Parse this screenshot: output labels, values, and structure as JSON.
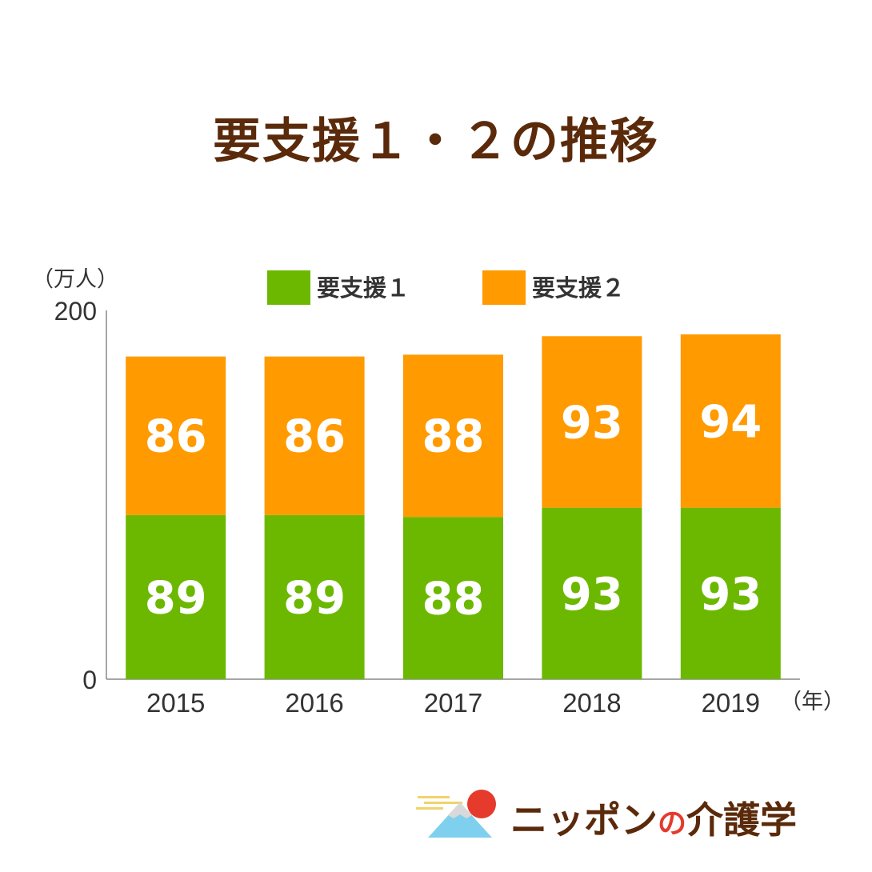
{
  "chart_data": {
    "type": "bar",
    "stacked": true,
    "title": "要支援１・２の推移",
    "ylabel": "（万人）",
    "xlabel": "（年）",
    "ylim": [
      0,
      200
    ],
    "yticks": [
      "0",
      "200"
    ],
    "categories": [
      "2015",
      "2016",
      "2017",
      "2018",
      "2019"
    ],
    "series": [
      {
        "name": "要支援１",
        "color": "#6cb800",
        "values": [
          89,
          89,
          88,
          93,
          93
        ]
      },
      {
        "name": "要支援２",
        "color": "#ff9a00",
        "values": [
          86,
          86,
          88,
          93,
          94
        ]
      }
    ],
    "legend_position": "top"
  },
  "logo": {
    "text_a": "ニッポン",
    "text_no": "の",
    "text_b": "介護学"
  }
}
